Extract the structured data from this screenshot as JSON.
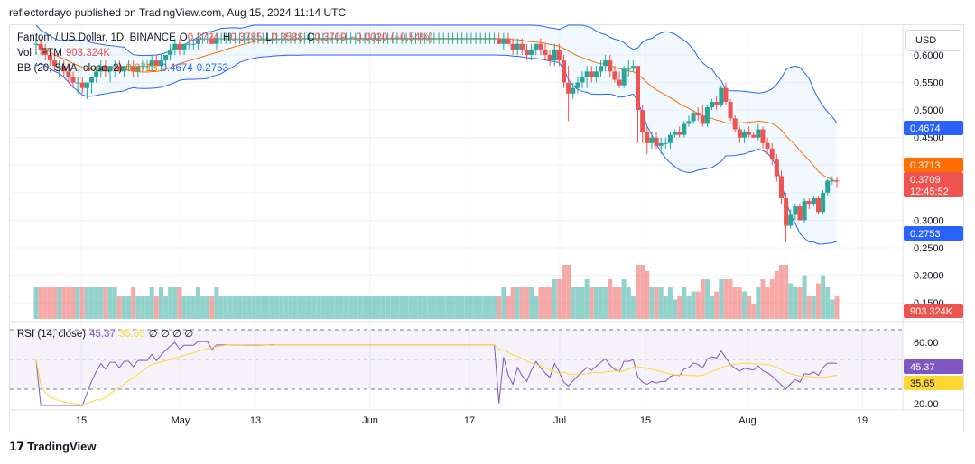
{
  "publisher_line": "reflectordayo published on TradingView.com, Aug 15, 2024 11:14 UTC",
  "currency_button": "USD",
  "footer_brand": "TradingView",
  "legend": {
    "symbol": "Fantom / US Dollar, 1D, BINANCE",
    "ohlc": {
      "o_label": "O",
      "o": "0.3724",
      "h_label": "H",
      "h": "0.3785",
      "l_label": "L",
      "l": "0.3588",
      "c_label": "C",
      "c": "0.3709",
      "change": "−0.0020 (−0.54%)"
    },
    "vol_label": "Vol · FTM",
    "vol_value": "903.324K",
    "bb_label": "BB (20, SMA, close, 2)",
    "bb_basis": "0.3713",
    "bb_upper": "0.4674",
    "bb_lower": "0.2753",
    "rsi_label": "RSI (14, close)",
    "rsi_value": "45.37",
    "rsi_ma": "35.65",
    "rsi_extra": "∅ ∅ ∅ ∅"
  },
  "colors": {
    "up": "#26a69a",
    "down": "#ef5350",
    "bb_band": "#2962ff",
    "bb_basis": "#ff6d00",
    "rsi": "#7e57c2",
    "rsi_ma": "#fdd835"
  },
  "chart_data": {
    "type": "candlestick",
    "price_ticks": [
      "0.6000",
      "0.5500",
      "0.5000",
      "0.4500",
      "0.3000",
      "0.2500",
      "0.2000",
      "0.1500"
    ],
    "rsi_ticks": [
      "60.00",
      "20.00"
    ],
    "x_ticks": [
      "15",
      "May",
      "13",
      "Jun",
      "17",
      "Jul",
      "15",
      "Aug",
      "19"
    ],
    "price_tags": [
      {
        "value": "0.4674",
        "color": "#2962ff"
      },
      {
        "value": "0.3713",
        "color": "#ff6d00"
      },
      {
        "value": "0.3709",
        "sub": "12:45:52",
        "color": "#ef5350"
      },
      {
        "value": "0.2753",
        "color": "#2962ff"
      },
      {
        "value": "903.324K",
        "color": "#ef5350"
      }
    ],
    "rsi_tags": [
      {
        "value": "45.37",
        "color": "#7e57c2"
      },
      {
        "value": "35.65",
        "color": "#fdd835"
      }
    ],
    "candles": [
      {
        "o": 0.62,
        "h": 0.63,
        "l": 0.6,
        "c": 0.62
      },
      {
        "o": 0.62,
        "h": 0.63,
        "l": 0.6,
        "c": 0.61
      },
      {
        "o": 0.61,
        "h": 0.62,
        "l": 0.59,
        "c": 0.6
      },
      {
        "o": 0.6,
        "h": 0.61,
        "l": 0.58,
        "c": 0.59
      },
      {
        "o": 0.59,
        "h": 0.6,
        "l": 0.57,
        "c": 0.58
      },
      {
        "o": 0.58,
        "h": 0.59,
        "l": 0.56,
        "c": 0.58
      },
      {
        "o": 0.58,
        "h": 0.59,
        "l": 0.56,
        "c": 0.57
      },
      {
        "o": 0.57,
        "h": 0.58,
        "l": 0.55,
        "c": 0.56
      },
      {
        "o": 0.56,
        "h": 0.57,
        "l": 0.54,
        "c": 0.55
      },
      {
        "o": 0.55,
        "h": 0.56,
        "l": 0.53,
        "c": 0.55
      },
      {
        "o": 0.55,
        "h": 0.56,
        "l": 0.53,
        "c": 0.54
      },
      {
        "o": 0.54,
        "h": 0.55,
        "l": 0.52,
        "c": 0.55
      },
      {
        "o": 0.55,
        "h": 0.56,
        "l": 0.53,
        "c": 0.56
      },
      {
        "o": 0.56,
        "h": 0.58,
        "l": 0.55,
        "c": 0.57
      },
      {
        "o": 0.57,
        "h": 0.59,
        "l": 0.56,
        "c": 0.58
      },
      {
        "o": 0.58,
        "h": 0.59,
        "l": 0.56,
        "c": 0.57
      },
      {
        "o": 0.57,
        "h": 0.58,
        "l": 0.55,
        "c": 0.58
      },
      {
        "o": 0.58,
        "h": 0.59,
        "l": 0.56,
        "c": 0.58
      },
      {
        "o": 0.58,
        "h": 0.59,
        "l": 0.57,
        "c": 0.57
      },
      {
        "o": 0.57,
        "h": 0.58,
        "l": 0.56,
        "c": 0.58
      },
      {
        "o": 0.58,
        "h": 0.59,
        "l": 0.57,
        "c": 0.58
      },
      {
        "o": 0.58,
        "h": 0.59,
        "l": 0.56,
        "c": 0.57
      },
      {
        "o": 0.57,
        "h": 0.58,
        "l": 0.56,
        "c": 0.58
      },
      {
        "o": 0.58,
        "h": 0.59,
        "l": 0.57,
        "c": 0.58
      },
      {
        "o": 0.58,
        "h": 0.59,
        "l": 0.57,
        "c": 0.58
      },
      {
        "o": 0.58,
        "h": 0.6,
        "l": 0.57,
        "c": 0.59
      },
      {
        "o": 0.59,
        "h": 0.6,
        "l": 0.58,
        "c": 0.58
      },
      {
        "o": 0.58,
        "h": 0.6,
        "l": 0.57,
        "c": 0.59
      },
      {
        "o": 0.59,
        "h": 0.6,
        "l": 0.58,
        "c": 0.6
      },
      {
        "o": 0.6,
        "h": 0.62,
        "l": 0.59,
        "c": 0.61
      },
      {
        "o": 0.61,
        "h": 0.63,
        "l": 0.6,
        "c": 0.62
      },
      {
        "o": 0.62,
        "h": 0.63,
        "l": 0.6,
        "c": 0.61
      },
      {
        "o": 0.61,
        "h": 0.62,
        "l": 0.6,
        "c": 0.62
      },
      {
        "o": 0.62,
        "h": 0.63,
        "l": 0.61,
        "c": 0.62
      },
      {
        "o": 0.62,
        "h": 0.63,
        "l": 0.61,
        "c": 0.62
      },
      {
        "o": 0.62,
        "h": 0.64,
        "l": 0.61,
        "c": 0.63
      },
      {
        "o": 0.63,
        "h": 0.64,
        "l": 0.62,
        "c": 0.63
      },
      {
        "o": 0.63,
        "h": 0.64,
        "l": 0.62,
        "c": 0.63
      },
      {
        "o": 0.63,
        "h": 0.64,
        "l": 0.62,
        "c": 0.62
      },
      {
        "o": 0.62,
        "h": 0.64,
        "l": 0.61,
        "c": 0.63
      },
      {
        "o": 0.63,
        "h": 0.64,
        "l": 0.62,
        "c": 0.63
      },
      {
        "o": 0.63,
        "h": 0.64,
        "l": 0.62,
        "c": 0.63
      },
      {
        "o": 0.63,
        "h": 0.64,
        "l": 0.62,
        "c": 0.63
      },
      {
        "o": 0.63,
        "h": 0.64,
        "l": 0.62,
        "c": 0.63
      },
      {
        "o": 0.63,
        "h": 0.64,
        "l": 0.62,
        "c": 0.63
      },
      {
        "o": 0.63,
        "h": 0.64,
        "l": 0.62,
        "c": 0.63
      },
      {
        "o": 0.63,
        "h": 0.64,
        "l": 0.62,
        "c": 0.63
      },
      {
        "o": 0.63,
        "h": 0.64,
        "l": 0.62,
        "c": 0.63
      },
      {
        "o": 0.63,
        "h": 0.64,
        "l": 0.62,
        "c": 0.63
      },
      {
        "o": 0.63,
        "h": 0.64,
        "l": 0.62,
        "c": 0.63
      },
      {
        "o": 0.63,
        "h": 0.64,
        "l": 0.62,
        "c": 0.63
      },
      {
        "o": 0.63,
        "h": 0.64,
        "l": 0.62,
        "c": 0.63
      },
      {
        "o": 0.63,
        "h": 0.64,
        "l": 0.62,
        "c": 0.63
      },
      {
        "o": 0.63,
        "h": 0.64,
        "l": 0.62,
        "c": 0.63
      },
      {
        "o": 0.63,
        "h": 0.64,
        "l": 0.62,
        "c": 0.63
      },
      {
        "o": 0.63,
        "h": 0.64,
        "l": 0.62,
        "c": 0.63
      },
      {
        "o": 0.63,
        "h": 0.64,
        "l": 0.62,
        "c": 0.63
      },
      {
        "o": 0.63,
        "h": 0.64,
        "l": 0.62,
        "c": 0.63
      },
      {
        "o": 0.63,
        "h": 0.64,
        "l": 0.62,
        "c": 0.63
      },
      {
        "o": 0.63,
        "h": 0.64,
        "l": 0.62,
        "c": 0.63
      },
      {
        "o": 0.63,
        "h": 0.64,
        "l": 0.62,
        "c": 0.63
      },
      {
        "o": 0.63,
        "h": 0.64,
        "l": 0.62,
        "c": 0.63
      },
      {
        "o": 0.63,
        "h": 0.64,
        "l": 0.62,
        "c": 0.63
      },
      {
        "o": 0.63,
        "h": 0.64,
        "l": 0.62,
        "c": 0.63
      },
      {
        "o": 0.63,
        "h": 0.64,
        "l": 0.62,
        "c": 0.63
      },
      {
        "o": 0.63,
        "h": 0.64,
        "l": 0.62,
        "c": 0.63
      },
      {
        "o": 0.63,
        "h": 0.64,
        "l": 0.62,
        "c": 0.63
      },
      {
        "o": 0.63,
        "h": 0.64,
        "l": 0.62,
        "c": 0.63
      },
      {
        "o": 0.63,
        "h": 0.64,
        "l": 0.62,
        "c": 0.63
      },
      {
        "o": 0.63,
        "h": 0.64,
        "l": 0.62,
        "c": 0.63
      },
      {
        "o": 0.63,
        "h": 0.64,
        "l": 0.62,
        "c": 0.63
      },
      {
        "o": 0.63,
        "h": 0.64,
        "l": 0.62,
        "c": 0.63
      },
      {
        "o": 0.63,
        "h": 0.64,
        "l": 0.62,
        "c": 0.63
      },
      {
        "o": 0.63,
        "h": 0.64,
        "l": 0.62,
        "c": 0.63
      },
      {
        "o": 0.63,
        "h": 0.64,
        "l": 0.62,
        "c": 0.63
      },
      {
        "o": 0.63,
        "h": 0.64,
        "l": 0.62,
        "c": 0.63
      },
      {
        "o": 0.63,
        "h": 0.64,
        "l": 0.62,
        "c": 0.63
      },
      {
        "o": 0.63,
        "h": 0.64,
        "l": 0.62,
        "c": 0.63
      },
      {
        "o": 0.63,
        "h": 0.64,
        "l": 0.62,
        "c": 0.63
      },
      {
        "o": 0.63,
        "h": 0.64,
        "l": 0.62,
        "c": 0.63
      },
      {
        "o": 0.63,
        "h": 0.64,
        "l": 0.62,
        "c": 0.63
      },
      {
        "o": 0.63,
        "h": 0.64,
        "l": 0.62,
        "c": 0.63
      },
      {
        "o": 0.63,
        "h": 0.64,
        "l": 0.62,
        "c": 0.63
      },
      {
        "o": 0.63,
        "h": 0.64,
        "l": 0.62,
        "c": 0.63
      },
      {
        "o": 0.63,
        "h": 0.64,
        "l": 0.62,
        "c": 0.63
      },
      {
        "o": 0.63,
        "h": 0.64,
        "l": 0.62,
        "c": 0.63
      },
      {
        "o": 0.63,
        "h": 0.64,
        "l": 0.62,
        "c": 0.63
      },
      {
        "o": 0.63,
        "h": 0.64,
        "l": 0.62,
        "c": 0.63
      },
      {
        "o": 0.63,
        "h": 0.64,
        "l": 0.62,
        "c": 0.63
      },
      {
        "o": 0.63,
        "h": 0.64,
        "l": 0.62,
        "c": 0.63
      },
      {
        "o": 0.63,
        "h": 0.64,
        "l": 0.62,
        "c": 0.63
      },
      {
        "o": 0.63,
        "h": 0.64,
        "l": 0.62,
        "c": 0.63
      },
      {
        "o": 0.63,
        "h": 0.64,
        "l": 0.62,
        "c": 0.63
      },
      {
        "o": 0.63,
        "h": 0.64,
        "l": 0.62,
        "c": 0.63
      },
      {
        "o": 0.63,
        "h": 0.64,
        "l": 0.62,
        "c": 0.63
      },
      {
        "o": 0.63,
        "h": 0.64,
        "l": 0.62,
        "c": 0.63
      },
      {
        "o": 0.63,
        "h": 0.64,
        "l": 0.62,
        "c": 0.63
      },
      {
        "o": 0.63,
        "h": 0.64,
        "l": 0.62,
        "c": 0.63
      },
      {
        "o": 0.63,
        "h": 0.64,
        "l": 0.62,
        "c": 0.63
      },
      {
        "o": 0.63,
        "h": 0.64,
        "l": 0.62,
        "c": 0.63
      },
      {
        "o": 0.63,
        "h": 0.64,
        "l": 0.62,
        "c": 0.62
      },
      {
        "o": 0.62,
        "h": 0.64,
        "l": 0.61,
        "c": 0.63
      },
      {
        "o": 0.63,
        "h": 0.64,
        "l": 0.62,
        "c": 0.62
      },
      {
        "o": 0.62,
        "h": 0.63,
        "l": 0.6,
        "c": 0.61
      },
      {
        "o": 0.61,
        "h": 0.63,
        "l": 0.6,
        "c": 0.62
      },
      {
        "o": 0.62,
        "h": 0.63,
        "l": 0.6,
        "c": 0.61
      },
      {
        "o": 0.61,
        "h": 0.62,
        "l": 0.59,
        "c": 0.6
      },
      {
        "o": 0.6,
        "h": 0.62,
        "l": 0.59,
        "c": 0.61
      },
      {
        "o": 0.61,
        "h": 0.62,
        "l": 0.6,
        "c": 0.62
      },
      {
        "o": 0.62,
        "h": 0.63,
        "l": 0.6,
        "c": 0.61
      },
      {
        "o": 0.61,
        "h": 0.62,
        "l": 0.59,
        "c": 0.6
      },
      {
        "o": 0.6,
        "h": 0.61,
        "l": 0.58,
        "c": 0.59
      },
      {
        "o": 0.59,
        "h": 0.62,
        "l": 0.58,
        "c": 0.61
      },
      {
        "o": 0.61,
        "h": 0.62,
        "l": 0.58,
        "c": 0.59
      },
      {
        "o": 0.59,
        "h": 0.6,
        "l": 0.54,
        "c": 0.55
      },
      {
        "o": 0.55,
        "h": 0.58,
        "l": 0.48,
        "c": 0.53
      },
      {
        "o": 0.53,
        "h": 0.55,
        "l": 0.52,
        "c": 0.54
      },
      {
        "o": 0.54,
        "h": 0.56,
        "l": 0.53,
        "c": 0.55
      },
      {
        "o": 0.55,
        "h": 0.57,
        "l": 0.54,
        "c": 0.56
      },
      {
        "o": 0.56,
        "h": 0.58,
        "l": 0.54,
        "c": 0.57
      },
      {
        "o": 0.57,
        "h": 0.58,
        "l": 0.55,
        "c": 0.56
      },
      {
        "o": 0.56,
        "h": 0.58,
        "l": 0.55,
        "c": 0.57
      },
      {
        "o": 0.57,
        "h": 0.59,
        "l": 0.56,
        "c": 0.58
      },
      {
        "o": 0.58,
        "h": 0.6,
        "l": 0.57,
        "c": 0.59
      },
      {
        "o": 0.59,
        "h": 0.6,
        "l": 0.56,
        "c": 0.57
      },
      {
        "o": 0.57,
        "h": 0.58,
        "l": 0.55,
        "c": 0.555
      },
      {
        "o": 0.555,
        "h": 0.57,
        "l": 0.54,
        "c": 0.545
      },
      {
        "o": 0.545,
        "h": 0.58,
        "l": 0.54,
        "c": 0.575
      },
      {
        "o": 0.575,
        "h": 0.59,
        "l": 0.56,
        "c": 0.575
      },
      {
        "o": 0.575,
        "h": 0.59,
        "l": 0.57,
        "c": 0.58
      },
      {
        "o": 0.58,
        "h": 0.58,
        "l": 0.44,
        "c": 0.5
      },
      {
        "o": 0.5,
        "h": 0.51,
        "l": 0.44,
        "c": 0.46
      },
      {
        "o": 0.46,
        "h": 0.47,
        "l": 0.42,
        "c": 0.44
      },
      {
        "o": 0.44,
        "h": 0.46,
        "l": 0.43,
        "c": 0.45
      },
      {
        "o": 0.45,
        "h": 0.46,
        "l": 0.43,
        "c": 0.435
      },
      {
        "o": 0.435,
        "h": 0.45,
        "l": 0.42,
        "c": 0.44
      },
      {
        "o": 0.44,
        "h": 0.45,
        "l": 0.43,
        "c": 0.44
      },
      {
        "o": 0.44,
        "h": 0.46,
        "l": 0.43,
        "c": 0.455
      },
      {
        "o": 0.455,
        "h": 0.465,
        "l": 0.45,
        "c": 0.46
      },
      {
        "o": 0.46,
        "h": 0.47,
        "l": 0.45,
        "c": 0.455
      },
      {
        "o": 0.455,
        "h": 0.48,
        "l": 0.45,
        "c": 0.475
      },
      {
        "o": 0.475,
        "h": 0.49,
        "l": 0.47,
        "c": 0.48
      },
      {
        "o": 0.48,
        "h": 0.5,
        "l": 0.475,
        "c": 0.495
      },
      {
        "o": 0.495,
        "h": 0.505,
        "l": 0.48,
        "c": 0.49
      },
      {
        "o": 0.49,
        "h": 0.51,
        "l": 0.47,
        "c": 0.475
      },
      {
        "o": 0.475,
        "h": 0.51,
        "l": 0.47,
        "c": 0.505
      },
      {
        "o": 0.505,
        "h": 0.52,
        "l": 0.5,
        "c": 0.515
      },
      {
        "o": 0.515,
        "h": 0.525,
        "l": 0.5,
        "c": 0.51
      },
      {
        "o": 0.51,
        "h": 0.545,
        "l": 0.505,
        "c": 0.54
      },
      {
        "o": 0.54,
        "h": 0.55,
        "l": 0.51,
        "c": 0.515
      },
      {
        "o": 0.515,
        "h": 0.52,
        "l": 0.48,
        "c": 0.485
      },
      {
        "o": 0.485,
        "h": 0.49,
        "l": 0.46,
        "c": 0.465
      },
      {
        "o": 0.465,
        "h": 0.47,
        "l": 0.44,
        "c": 0.45
      },
      {
        "o": 0.45,
        "h": 0.465,
        "l": 0.44,
        "c": 0.46
      },
      {
        "o": 0.46,
        "h": 0.47,
        "l": 0.45,
        "c": 0.455
      },
      {
        "o": 0.455,
        "h": 0.46,
        "l": 0.45,
        "c": 0.45
      },
      {
        "o": 0.45,
        "h": 0.475,
        "l": 0.445,
        "c": 0.465
      },
      {
        "o": 0.465,
        "h": 0.47,
        "l": 0.43,
        "c": 0.44
      },
      {
        "o": 0.44,
        "h": 0.45,
        "l": 0.42,
        "c": 0.43
      },
      {
        "o": 0.43,
        "h": 0.44,
        "l": 0.4,
        "c": 0.41
      },
      {
        "o": 0.41,
        "h": 0.42,
        "l": 0.37,
        "c": 0.38
      },
      {
        "o": 0.38,
        "h": 0.39,
        "l": 0.33,
        "c": 0.34
      },
      {
        "o": 0.34,
        "h": 0.35,
        "l": 0.26,
        "c": 0.29
      },
      {
        "o": 0.29,
        "h": 0.32,
        "l": 0.285,
        "c": 0.31
      },
      {
        "o": 0.31,
        "h": 0.33,
        "l": 0.3,
        "c": 0.325
      },
      {
        "o": 0.325,
        "h": 0.33,
        "l": 0.3,
        "c": 0.3
      },
      {
        "o": 0.3,
        "h": 0.34,
        "l": 0.295,
        "c": 0.335
      },
      {
        "o": 0.335,
        "h": 0.34,
        "l": 0.32,
        "c": 0.33
      },
      {
        "o": 0.33,
        "h": 0.345,
        "l": 0.325,
        "c": 0.34
      },
      {
        "o": 0.34,
        "h": 0.345,
        "l": 0.31,
        "c": 0.315
      },
      {
        "o": 0.315,
        "h": 0.355,
        "l": 0.31,
        "c": 0.35
      },
      {
        "o": 0.35,
        "h": 0.375,
        "l": 0.345,
        "c": 0.372
      },
      {
        "o": 0.372,
        "h": 0.38,
        "l": 0.365,
        "c": 0.3724
      },
      {
        "o": 0.3724,
        "h": 0.3785,
        "l": 0.3588,
        "c": 0.3709
      }
    ]
  }
}
